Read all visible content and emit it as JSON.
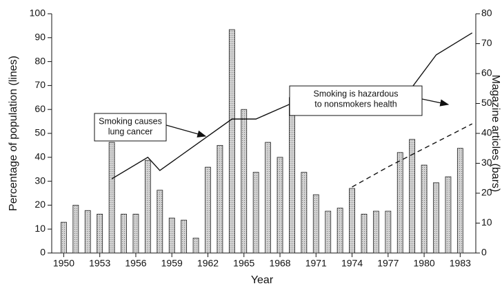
{
  "chart_data": {
    "type": "bar",
    "x_label": "Year",
    "y_label": "Percentage of population (lines)",
    "y2_label": "Magazine articles (bars)",
    "xlim": [
      1949,
      1984.3
    ],
    "xticks": [
      1950,
      1953,
      1956,
      1959,
      1962,
      1965,
      1968,
      1971,
      1974,
      1977,
      1980,
      1983
    ],
    "ylim": [
      0,
      100
    ],
    "yticks": [
      0,
      10,
      20,
      30,
      40,
      50,
      60,
      70,
      80,
      90,
      100
    ],
    "y2lim": [
      0,
      80
    ],
    "y2ticks": [
      0,
      10,
      20,
      30,
      40,
      50,
      60,
      70,
      80
    ],
    "series": [
      {
        "type": "bar",
        "axis": "y2",
        "color": "#c4c4c4",
        "x": [
          1950,
          1951,
          1952,
          1953,
          1954,
          1955,
          1956,
          1957,
          1958,
          1959,
          1960,
          1961,
          1962,
          1963,
          1964,
          1965,
          1966,
          1967,
          1968,
          1969,
          1970,
          1971,
          1972,
          1973,
          1974,
          1975,
          1976,
          1977,
          1978,
          1979,
          1980,
          1981,
          1982,
          1983
        ],
        "values": [
          10.3,
          16,
          14.2,
          13,
          37,
          13,
          13,
          31,
          21,
          11.7,
          11,
          5,
          28.7,
          36,
          74.7,
          48,
          27,
          37,
          32,
          52,
          27,
          19.5,
          14,
          15,
          21.6,
          13,
          14,
          14,
          33.6,
          38,
          29.4,
          23.5,
          25.5,
          35
        ]
      },
      {
        "type": "line",
        "color": "#111111",
        "dashed": false,
        "x": [
          1954,
          1957,
          1958,
          1964,
          1966,
          1969,
          1978,
          1981,
          1984
        ],
        "values": [
          31,
          40,
          34.5,
          56,
          56,
          62.6,
          62.6,
          82.8,
          92
        ]
      },
      {
        "type": "line",
        "color": "#111111",
        "dashed": true,
        "x": [
          1974,
          1977,
          1984
        ],
        "values": [
          27.6,
          36,
          54
        ]
      }
    ],
    "annotations": [
      {
        "lines": [
          "Smoking causes",
          "lung cancer"
        ]
      },
      {
        "lines": [
          "Smoking is hazardous",
          "to nonsmokers health"
        ]
      }
    ]
  }
}
